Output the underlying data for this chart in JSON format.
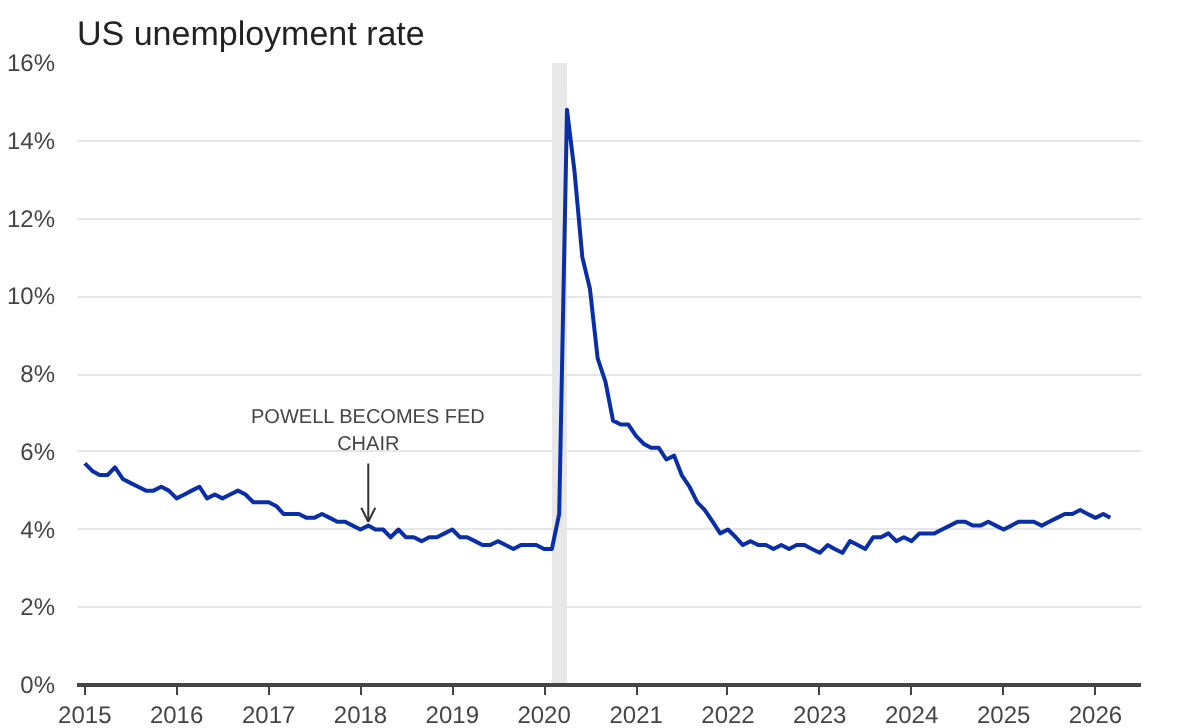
{
  "chart_data": {
    "type": "line",
    "title": "US unemployment rate",
    "x": [
      "2015-01",
      "2015-02",
      "2015-03",
      "2015-04",
      "2015-05",
      "2015-06",
      "2015-07",
      "2015-08",
      "2015-09",
      "2015-10",
      "2015-11",
      "2015-12",
      "2016-01",
      "2016-02",
      "2016-03",
      "2016-04",
      "2016-05",
      "2016-06",
      "2016-07",
      "2016-08",
      "2016-09",
      "2016-10",
      "2016-11",
      "2016-12",
      "2017-01",
      "2017-02",
      "2017-03",
      "2017-04",
      "2017-05",
      "2017-06",
      "2017-07",
      "2017-08",
      "2017-09",
      "2017-10",
      "2017-11",
      "2017-12",
      "2018-01",
      "2018-02",
      "2018-03",
      "2018-04",
      "2018-05",
      "2018-06",
      "2018-07",
      "2018-08",
      "2018-09",
      "2018-10",
      "2018-11",
      "2018-12",
      "2019-01",
      "2019-02",
      "2019-03",
      "2019-04",
      "2019-05",
      "2019-06",
      "2019-07",
      "2019-08",
      "2019-09",
      "2019-10",
      "2019-11",
      "2019-12",
      "2020-01",
      "2020-02",
      "2020-03",
      "2020-04",
      "2020-05",
      "2020-06",
      "2020-07",
      "2020-08",
      "2020-09",
      "2020-10",
      "2020-11",
      "2020-12",
      "2021-01",
      "2021-02",
      "2021-03",
      "2021-04",
      "2021-05",
      "2021-06",
      "2021-07",
      "2021-08",
      "2021-09",
      "2021-10",
      "2021-11",
      "2021-12",
      "2022-01",
      "2022-02",
      "2022-03",
      "2022-04",
      "2022-05",
      "2022-06",
      "2022-07",
      "2022-08",
      "2022-09",
      "2022-10",
      "2022-11",
      "2022-12",
      "2023-01",
      "2023-02",
      "2023-03",
      "2023-04",
      "2023-05",
      "2023-06",
      "2023-07",
      "2023-08",
      "2023-09",
      "2023-10",
      "2023-11",
      "2023-12",
      "2024-01",
      "2024-02",
      "2024-03",
      "2024-04",
      "2024-05",
      "2024-06",
      "2024-07",
      "2024-08",
      "2024-09",
      "2024-10",
      "2024-11",
      "2024-12",
      "2025-01",
      "2025-02",
      "2025-03",
      "2025-04",
      "2025-05",
      "2025-06",
      "2025-07",
      "2025-08",
      "2025-09",
      "2025-10",
      "2025-11",
      "2025-12",
      "2026-01",
      "2026-02",
      "2026-03"
    ],
    "series": [
      {
        "color": "#0a2ea8",
        "values": [
          5.7,
          5.5,
          5.4,
          5.4,
          5.6,
          5.3,
          5.2,
          5.1,
          5.0,
          5.0,
          5.1,
          5.0,
          4.8,
          4.9,
          5.0,
          5.1,
          4.8,
          4.9,
          4.8,
          4.9,
          5.0,
          4.9,
          4.7,
          4.7,
          4.7,
          4.6,
          4.4,
          4.4,
          4.4,
          4.3,
          4.3,
          4.4,
          4.3,
          4.2,
          4.2,
          4.1,
          4.0,
          4.1,
          4.0,
          4.0,
          3.8,
          4.0,
          3.8,
          3.8,
          3.7,
          3.8,
          3.8,
          3.9,
          4.0,
          3.8,
          3.8,
          3.7,
          3.6,
          3.6,
          3.7,
          3.6,
          3.5,
          3.6,
          3.6,
          3.6,
          3.5,
          3.5,
          4.4,
          14.8,
          13.2,
          11.0,
          10.2,
          8.4,
          7.8,
          6.8,
          6.7,
          6.7,
          6.4,
          6.2,
          6.1,
          6.1,
          5.8,
          5.9,
          5.4,
          5.1,
          4.7,
          4.5,
          4.2,
          3.9,
          4.0,
          3.8,
          3.6,
          3.7,
          3.6,
          3.6,
          3.5,
          3.6,
          3.5,
          3.6,
          3.6,
          3.5,
          3.4,
          3.6,
          3.5,
          3.4,
          3.7,
          3.6,
          3.5,
          3.8,
          3.8,
          3.9,
          3.7,
          3.8,
          3.7,
          3.9,
          3.9,
          3.9,
          4.0,
          4.1,
          4.2,
          4.2,
          4.1,
          4.1,
          4.2,
          4.1,
          4.0,
          4.1,
          4.2,
          4.2,
          4.2,
          4.1,
          4.2,
          4.3,
          4.4,
          4.4,
          4.5,
          4.4,
          4.3,
          4.4,
          4.3
        ]
      }
    ],
    "xlim": [
      "2014-12",
      "2026-07"
    ],
    "xticks": [
      "2015",
      "2016",
      "2017",
      "2018",
      "2019",
      "2020",
      "2021",
      "2022",
      "2023",
      "2024",
      "2025",
      "2026"
    ],
    "ylim": [
      0,
      16
    ],
    "yticks": [
      {
        "value": 0,
        "label": "0%"
      },
      {
        "value": 2,
        "label": "2%"
      },
      {
        "value": 4,
        "label": "4%"
      },
      {
        "value": 6,
        "label": "6%"
      },
      {
        "value": 8,
        "label": "8%"
      },
      {
        "value": 10,
        "label": "10%"
      },
      {
        "value": 12,
        "label": "12%"
      },
      {
        "value": 14,
        "label": "14%"
      },
      {
        "value": 16,
        "label": "16%"
      }
    ],
    "bands": [
      {
        "axis": "x",
        "from": "2020-02",
        "to": "2020-04",
        "color": "#e8e8e8"
      }
    ],
    "annotations": [
      {
        "text": "POWELL BECOMES FED\nCHAIR",
        "x": "2018-02",
        "y": 4.2
      }
    ],
    "grid": "y"
  }
}
